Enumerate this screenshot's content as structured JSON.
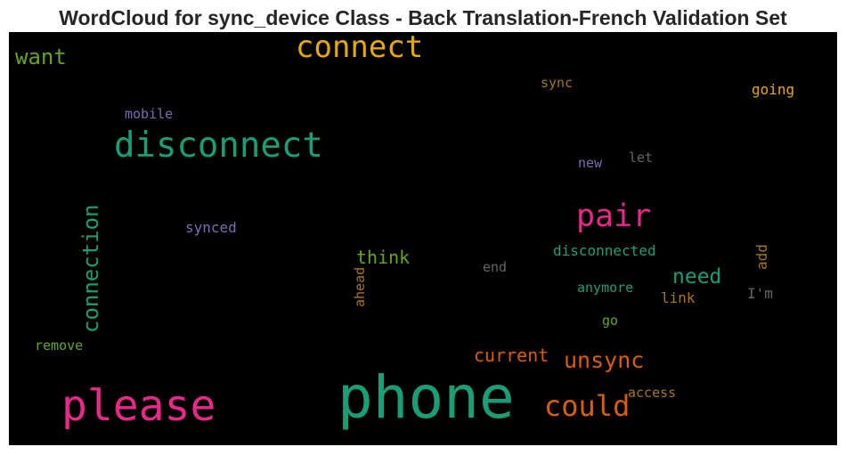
{
  "title": "WordCloud for sync_device Class - Back Translation-French Validation Set",
  "words": [
    {
      "text": "connect",
      "color": "#e6ab02",
      "vertical": false
    },
    {
      "text": "want",
      "color": "#66a61e",
      "vertical": false
    },
    {
      "text": "sync",
      "color": "#a6761d",
      "vertical": false
    },
    {
      "text": "going",
      "color": "#e6ab02",
      "vertical": false
    },
    {
      "text": "mobile",
      "color": "#7570b3",
      "vertical": false
    },
    {
      "text": "disconnect",
      "color": "#1b9e77",
      "vertical": false
    },
    {
      "text": "new",
      "color": "#7570b3",
      "vertical": false
    },
    {
      "text": "let",
      "color": "#666666",
      "vertical": false
    },
    {
      "text": "connection",
      "color": "#1b9e77",
      "vertical": true
    },
    {
      "text": "pair",
      "color": "#e7298a",
      "vertical": false
    },
    {
      "text": "synced",
      "color": "#7570b3",
      "vertical": false
    },
    {
      "text": "disconnected",
      "color": "#1b9e77",
      "vertical": false
    },
    {
      "text": "add",
      "color": "#a6761d",
      "vertical": true
    },
    {
      "text": "think",
      "color": "#66a61e",
      "vertical": false
    },
    {
      "text": "ahead",
      "color": "#a6761d",
      "vertical": true
    },
    {
      "text": "end",
      "color": "#666666",
      "vertical": false
    },
    {
      "text": "need",
      "color": "#1b9e77",
      "vertical": false
    },
    {
      "text": "anymore",
      "color": "#1b9e77",
      "vertical": false
    },
    {
      "text": "I'm",
      "color": "#666666",
      "vertical": false
    },
    {
      "text": "link",
      "color": "#a6761d",
      "vertical": false
    },
    {
      "text": "go",
      "color": "#66a61e",
      "vertical": false
    },
    {
      "text": "remove",
      "color": "#66a61e",
      "vertical": false
    },
    {
      "text": "current",
      "color": "#d95f02",
      "vertical": false
    },
    {
      "text": "unsync",
      "color": "#d95f02",
      "vertical": false
    },
    {
      "text": "please",
      "color": "#e7298a",
      "vertical": false
    },
    {
      "text": "phone",
      "color": "#1b9e77",
      "vertical": false
    },
    {
      "text": "access",
      "color": "#a6761d",
      "vertical": false
    },
    {
      "text": "could",
      "color": "#d95f02",
      "vertical": false
    }
  ]
}
